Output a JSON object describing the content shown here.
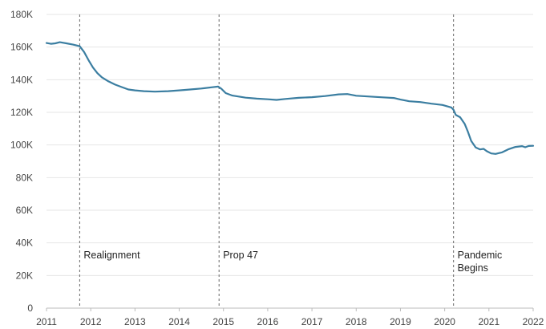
{
  "chart_data": {
    "type": "line",
    "title": "",
    "xlabel": "",
    "ylabel": "",
    "xlim": [
      2011,
      2022
    ],
    "ylim": [
      0,
      180000
    ],
    "x_ticks": [
      2011,
      2012,
      2013,
      2014,
      2015,
      2016,
      2017,
      2018,
      2019,
      2020,
      2021,
      2022
    ],
    "x_tick_labels": [
      "2011",
      "2012",
      "2013",
      "2014",
      "2015",
      "2016",
      "2017",
      "2018",
      "2019",
      "2020",
      "2021",
      "2022"
    ],
    "y_ticks": [
      0,
      20000,
      40000,
      60000,
      80000,
      100000,
      120000,
      140000,
      160000,
      180000
    ],
    "y_tick_labels": [
      "0",
      "20K",
      "40K",
      "60K",
      "80K",
      "100K",
      "120K",
      "140K",
      "160K",
      "180K"
    ],
    "grid": "horizontal",
    "colors": {
      "series": "#3b7ea1"
    },
    "series": [
      {
        "values": [
          [
            2011.0,
            162500
          ],
          [
            2011.1,
            162000
          ],
          [
            2011.2,
            162300
          ],
          [
            2011.3,
            163000
          ],
          [
            2011.45,
            162300
          ],
          [
            2011.6,
            161500
          ],
          [
            2011.75,
            160500
          ],
          [
            2011.85,
            157000
          ],
          [
            2011.95,
            152000
          ],
          [
            2012.05,
            147500
          ],
          [
            2012.15,
            144000
          ],
          [
            2012.25,
            141500
          ],
          [
            2012.4,
            139000
          ],
          [
            2012.55,
            137000
          ],
          [
            2012.7,
            135500
          ],
          [
            2012.85,
            134000
          ],
          [
            2013.0,
            133500
          ],
          [
            2013.2,
            133000
          ],
          [
            2013.45,
            132700
          ],
          [
            2013.75,
            133000
          ],
          [
            2014.0,
            133500
          ],
          [
            2014.25,
            134000
          ],
          [
            2014.5,
            134600
          ],
          [
            2014.75,
            135400
          ],
          [
            2014.88,
            135800
          ],
          [
            2014.95,
            134500
          ],
          [
            2015.05,
            131800
          ],
          [
            2015.2,
            130300
          ],
          [
            2015.5,
            129000
          ],
          [
            2015.75,
            128400
          ],
          [
            2016.0,
            128000
          ],
          [
            2016.2,
            127600
          ],
          [
            2016.4,
            128200
          ],
          [
            2016.7,
            128900
          ],
          [
            2017.0,
            129300
          ],
          [
            2017.3,
            130000
          ],
          [
            2017.6,
            131000
          ],
          [
            2017.8,
            131200
          ],
          [
            2018.0,
            130200
          ],
          [
            2018.3,
            129700
          ],
          [
            2018.6,
            129200
          ],
          [
            2018.85,
            128800
          ],
          [
            2019.0,
            127800
          ],
          [
            2019.2,
            126800
          ],
          [
            2019.45,
            126300
          ],
          [
            2019.7,
            125300
          ],
          [
            2019.95,
            124500
          ],
          [
            2020.15,
            123000
          ],
          [
            2020.2,
            121500
          ],
          [
            2020.25,
            118500
          ],
          [
            2020.35,
            117000
          ],
          [
            2020.45,
            113000
          ],
          [
            2020.52,
            108500
          ],
          [
            2020.6,
            102500
          ],
          [
            2020.7,
            98500
          ],
          [
            2020.8,
            97300
          ],
          [
            2020.88,
            97600
          ],
          [
            2020.95,
            96200
          ],
          [
            2021.05,
            94800
          ],
          [
            2021.15,
            94500
          ],
          [
            2021.3,
            95500
          ],
          [
            2021.45,
            97500
          ],
          [
            2021.6,
            98800
          ],
          [
            2021.75,
            99300
          ],
          [
            2021.82,
            98600
          ],
          [
            2021.9,
            99400
          ],
          [
            2022.0,
            99500
          ]
        ]
      }
    ],
    "annotations": [
      {
        "x": 2011.75,
        "lines": [
          "Realignment"
        ]
      },
      {
        "x": 2014.9,
        "lines": [
          "Prop 47"
        ]
      },
      {
        "x": 2020.2,
        "lines": [
          "Pandemic",
          "Begins"
        ]
      }
    ]
  }
}
